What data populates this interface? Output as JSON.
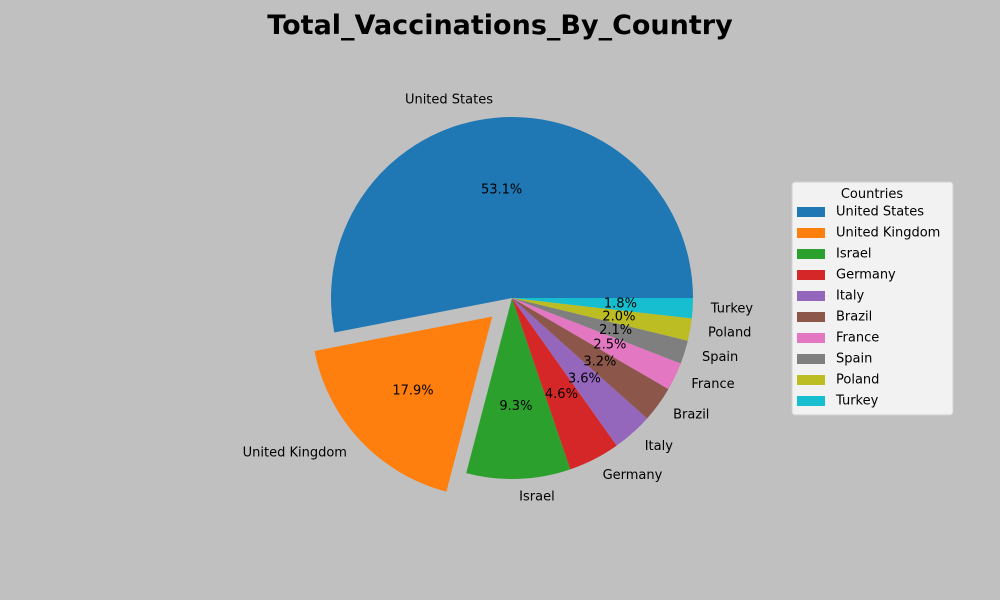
{
  "chart_data": {
    "type": "pie",
    "title": "Total_Vaccinations_By_Country",
    "categories": [
      "United States",
      "United Kingdom",
      "Israel",
      "Germany",
      "Italy",
      "Brazil",
      "France",
      "Spain",
      "Poland",
      "Turkey"
    ],
    "values": [
      53.1,
      17.9,
      9.3,
      4.6,
      3.6,
      3.2,
      2.5,
      2.1,
      2.0,
      1.8
    ],
    "value_labels": [
      "53.1%",
      "17.9%",
      "9.3%",
      "4.6%",
      "3.6%",
      "3.2%",
      "2.5%",
      "2.1%",
      "2.0%",
      "1.8%"
    ],
    "colors": [
      "#1f77b4",
      "#ff7f0e",
      "#2ca02c",
      "#d62728",
      "#9467bd",
      "#8c564b",
      "#e377c2",
      "#7f7f7f",
      "#bcbd22",
      "#17becf"
    ],
    "exploded": [
      "United Kingdom"
    ],
    "start_angle_deg": 0,
    "direction": "counterclockwise",
    "legend": {
      "title": "Countries",
      "placement": "right"
    }
  }
}
